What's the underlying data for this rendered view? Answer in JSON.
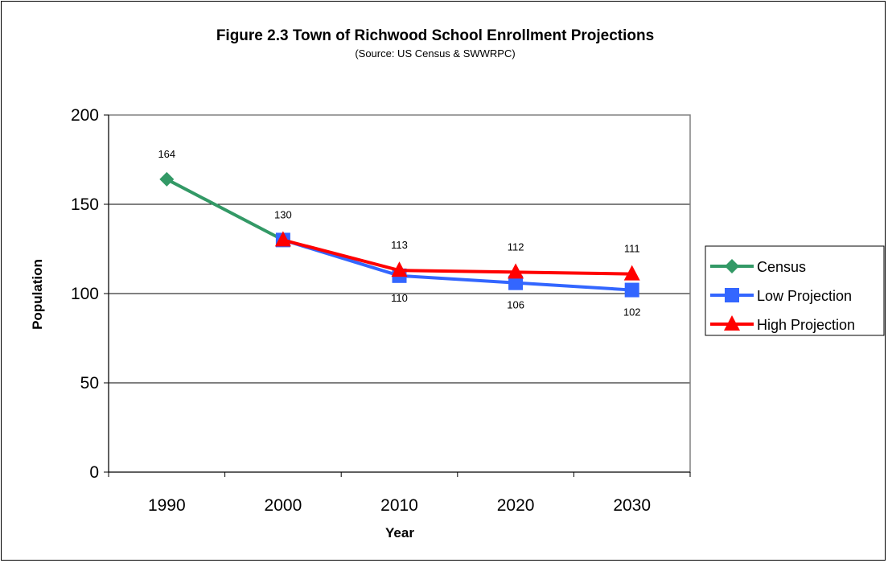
{
  "chart_data": {
    "type": "line",
    "title": "Figure 2.3 Town of Richwood School Enrollment Projections",
    "subtitle": "(Source: US Census & SWWRPC)",
    "xlabel": "Year",
    "ylabel": "Population",
    "categories": [
      "1990",
      "2000",
      "2010",
      "2020",
      "2030"
    ],
    "ylim": [
      0,
      200
    ],
    "yticks": [
      0,
      50,
      100,
      150,
      200
    ],
    "grid": true,
    "legend_position": "right",
    "series": [
      {
        "name": "Census",
        "color": "#339966",
        "marker": "diamond",
        "values": [
          164,
          130,
          null,
          null,
          null
        ],
        "labels": [
          "164",
          "130",
          "",
          "",
          ""
        ]
      },
      {
        "name": "Low Projection",
        "color": "#3366FF",
        "marker": "square",
        "values": [
          null,
          130,
          110,
          106,
          102
        ],
        "labels": [
          "",
          "",
          "110",
          "106",
          "102"
        ]
      },
      {
        "name": "High Projection",
        "color": "#FF0000",
        "marker": "triangle",
        "values": [
          null,
          130,
          113,
          112,
          111
        ],
        "labels": [
          "",
          "",
          "113",
          "112",
          "111"
        ]
      }
    ]
  }
}
